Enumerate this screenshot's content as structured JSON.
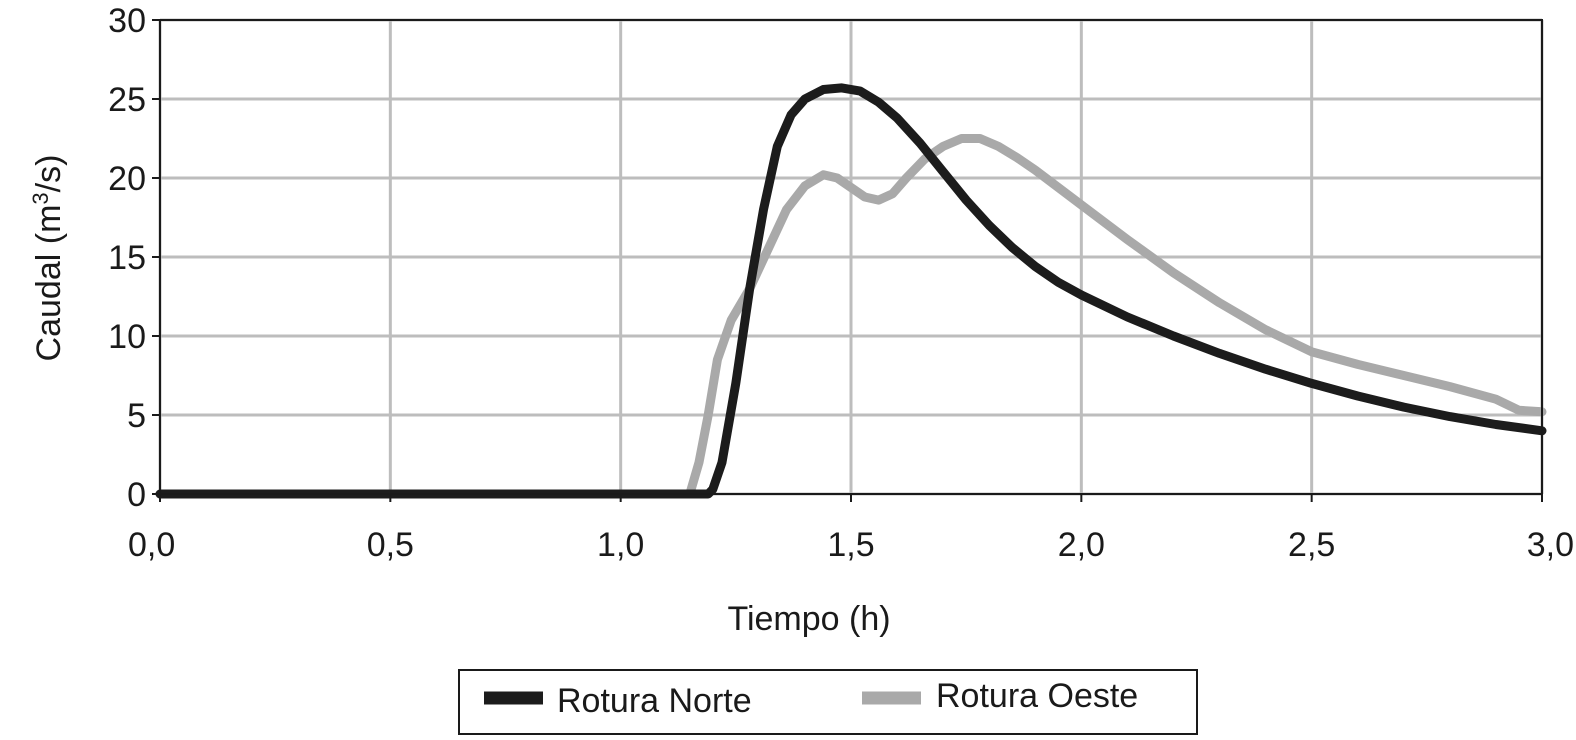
{
  "chart_data": {
    "type": "line",
    "xlabel": "Tiempo (h)",
    "ylabel_main": "Caudal (m",
    "ylabel_sup": "3",
    "ylabel_end": "/s)",
    "xlim": [
      0,
      3
    ],
    "ylim": [
      0,
      30
    ],
    "x_ticks": [
      0,
      0.5,
      1.0,
      1.5,
      2.0,
      2.5,
      3.0
    ],
    "x_tick_labels": [
      "0,0",
      "0,5",
      "1,0",
      "1,5",
      "2,0",
      "2,5",
      "3,0"
    ],
    "y_ticks": [
      0,
      5,
      10,
      15,
      20,
      25,
      30
    ],
    "y_tick_labels": [
      "0",
      "5",
      "10",
      "15",
      "20",
      "25",
      "30"
    ],
    "grid": true,
    "legend_position": "bottom-center",
    "series": [
      {
        "name": "Rotura Norte",
        "color": "#1c1c1c",
        "points": [
          [
            0,
            0
          ],
          [
            1.0,
            0
          ],
          [
            1.19,
            0
          ],
          [
            1.2,
            0.3
          ],
          [
            1.22,
            2
          ],
          [
            1.25,
            7
          ],
          [
            1.28,
            13
          ],
          [
            1.31,
            18
          ],
          [
            1.34,
            22
          ],
          [
            1.37,
            24
          ],
          [
            1.4,
            25
          ],
          [
            1.44,
            25.6
          ],
          [
            1.48,
            25.7
          ],
          [
            1.52,
            25.5
          ],
          [
            1.56,
            24.8
          ],
          [
            1.6,
            23.8
          ],
          [
            1.65,
            22.2
          ],
          [
            1.7,
            20.4
          ],
          [
            1.75,
            18.6
          ],
          [
            1.8,
            17
          ],
          [
            1.85,
            15.6
          ],
          [
            1.9,
            14.4
          ],
          [
            1.95,
            13.4
          ],
          [
            2.0,
            12.6
          ],
          [
            2.1,
            11.2
          ],
          [
            2.2,
            10.0
          ],
          [
            2.3,
            8.9
          ],
          [
            2.4,
            7.9
          ],
          [
            2.5,
            7.0
          ],
          [
            2.6,
            6.2
          ],
          [
            2.7,
            5.5
          ],
          [
            2.8,
            4.9
          ],
          [
            2.9,
            4.4
          ],
          [
            3.0,
            4.0
          ]
        ]
      },
      {
        "name": "Rotura Oeste",
        "color": "#a9a9a9",
        "points": [
          [
            0,
            0
          ],
          [
            1.0,
            0
          ],
          [
            1.15,
            0
          ],
          [
            1.17,
            2
          ],
          [
            1.19,
            5
          ],
          [
            1.21,
            8.5
          ],
          [
            1.24,
            11
          ],
          [
            1.28,
            13
          ],
          [
            1.32,
            15.5
          ],
          [
            1.36,
            18
          ],
          [
            1.4,
            19.5
          ],
          [
            1.44,
            20.2
          ],
          [
            1.47,
            20.0
          ],
          [
            1.5,
            19.4
          ],
          [
            1.53,
            18.8
          ],
          [
            1.56,
            18.6
          ],
          [
            1.59,
            19.0
          ],
          [
            1.62,
            20.0
          ],
          [
            1.66,
            21.2
          ],
          [
            1.7,
            22.0
          ],
          [
            1.74,
            22.5
          ],
          [
            1.78,
            22.5
          ],
          [
            1.82,
            22.0
          ],
          [
            1.86,
            21.3
          ],
          [
            1.9,
            20.5
          ],
          [
            1.95,
            19.4
          ],
          [
            2.0,
            18.3
          ],
          [
            2.1,
            16.1
          ],
          [
            2.2,
            14.0
          ],
          [
            2.3,
            12.1
          ],
          [
            2.4,
            10.4
          ],
          [
            2.5,
            9.0
          ],
          [
            2.6,
            8.2
          ],
          [
            2.7,
            7.5
          ],
          [
            2.8,
            6.8
          ],
          [
            2.9,
            6.0
          ],
          [
            2.95,
            5.3
          ],
          [
            3.0,
            5.2
          ]
        ]
      }
    ]
  }
}
